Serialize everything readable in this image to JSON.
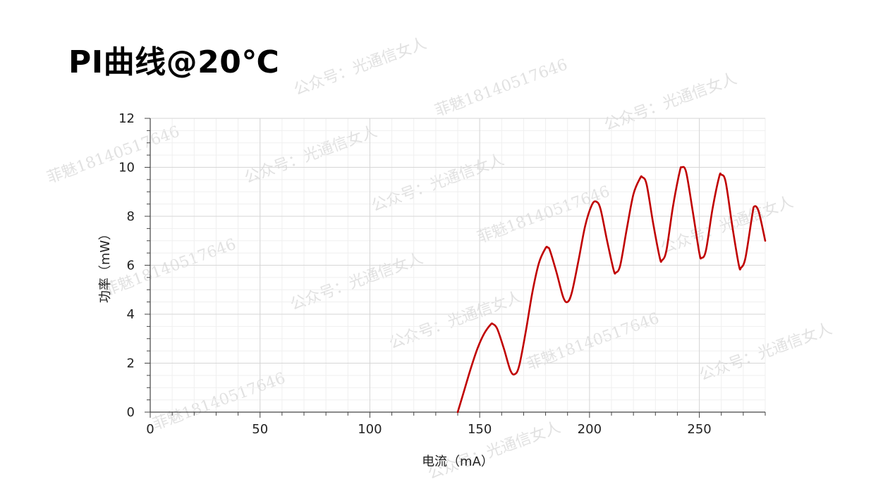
{
  "page": {
    "title": "PI曲线@20℃"
  },
  "watermarks": [
    "公众号：光通信女人",
    "菲魅18140517646",
    "公众号：光通信女人",
    "菲魅18140517646",
    "公众号：光通信女人",
    "公众号：光通信女人",
    "菲魅18140517646",
    "公众号：光通信女人",
    "菲魅18140517646",
    "公众号：光通信女人",
    "菲魅18140517646",
    "公众号：光通信女人",
    "公众号：光通信女人",
    "菲魅18140517646",
    "公众号：光通信女人"
  ],
  "chart_data": {
    "type": "line",
    "title": "",
    "xlabel": "电流（mA）",
    "ylabel": "功率（mW）",
    "xlim": [
      0,
      280
    ],
    "ylim": [
      0,
      12
    ],
    "xticks": [
      0,
      50,
      100,
      150,
      200,
      250
    ],
    "yticks": [
      0,
      2,
      4,
      6,
      8,
      10,
      12
    ],
    "grid": true,
    "legend": "none",
    "line_color": "#c00000",
    "series": [
      {
        "x": [
          140,
          143,
          146,
          149,
          152,
          155,
          156,
          158,
          161,
          164,
          166,
          168,
          171,
          174,
          177,
          180,
          181,
          182,
          185,
          188,
          190,
          192,
          195,
          198,
          201,
          203,
          205,
          208,
          211,
          212,
          214,
          217,
          220,
          223,
          224,
          226,
          229,
          232,
          233,
          235,
          238,
          241,
          242,
          244,
          247,
          250,
          251,
          253,
          256,
          259,
          260,
          262,
          265,
          268,
          269,
          271,
          274,
          275,
          277,
          280
        ],
        "y": [
          0,
          0.9,
          1.8,
          2.6,
          3.2,
          3.58,
          3.6,
          3.4,
          2.6,
          1.7,
          1.55,
          1.9,
          3.3,
          4.9,
          6.1,
          6.7,
          6.72,
          6.6,
          5.7,
          4.7,
          4.5,
          4.9,
          6.2,
          7.6,
          8.45,
          8.6,
          8.3,
          7.0,
          5.8,
          5.7,
          6.0,
          7.5,
          8.9,
          9.55,
          9.6,
          9.3,
          7.7,
          6.3,
          6.2,
          6.6,
          8.4,
          9.8,
          10.0,
          9.8,
          8.2,
          6.5,
          6.3,
          6.6,
          8.3,
          9.6,
          9.7,
          9.4,
          7.6,
          6.0,
          5.9,
          6.3,
          8.0,
          8.4,
          8.2,
          7.0
        ]
      }
    ]
  }
}
